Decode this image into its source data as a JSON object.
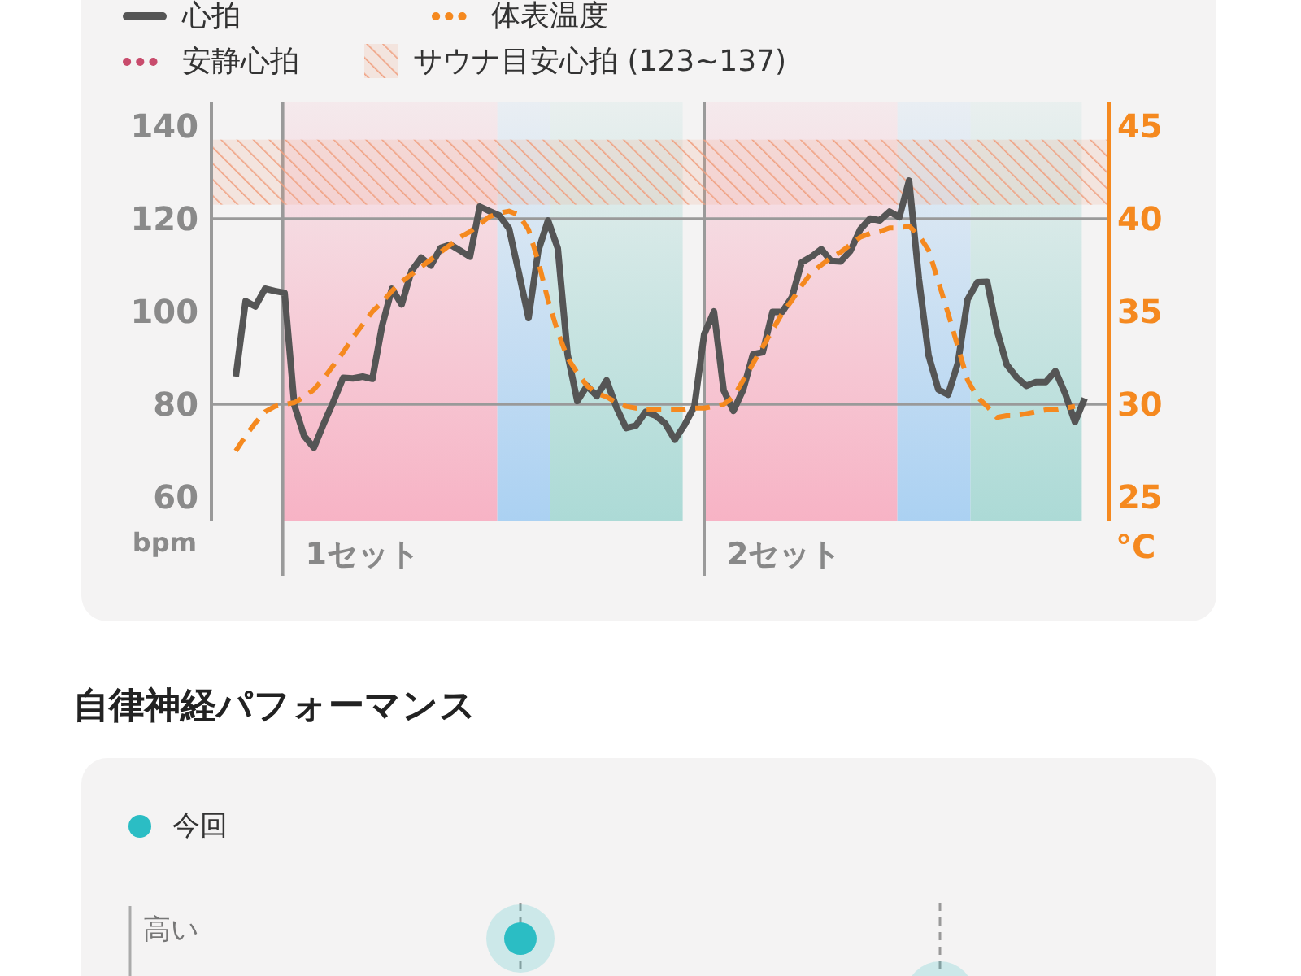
{
  "chart_data": [
    {
      "type": "line",
      "ylim": [
        55,
        145
      ],
      "yticks": [
        60,
        80,
        100,
        120,
        140
      ],
      "ylabel": "bpm",
      "y2lim": [
        23.75,
        46.25
      ],
      "y2ticks": [
        25,
        30,
        35,
        40,
        45
      ],
      "y2label": "°C",
      "legend": "top",
      "categories": [
        null,
        null,
        null,
        null,
        null,
        null,
        null,
        null,
        null,
        null,
        null,
        null,
        null,
        null,
        null,
        null,
        null,
        null,
        null,
        null,
        null,
        null,
        null,
        null,
        null,
        null,
        null,
        null,
        null,
        null,
        null,
        null,
        null,
        null,
        null,
        null,
        null,
        null,
        null,
        null,
        null,
        null,
        null,
        null,
        null,
        null,
        null,
        null,
        null,
        null,
        null,
        null,
        null,
        null,
        null,
        null,
        null,
        null,
        null,
        null,
        null,
        null,
        null,
        null,
        null,
        null,
        null,
        null,
        null,
        null,
        null,
        null,
        null,
        null,
        null,
        null,
        null,
        null,
        null,
        null,
        null,
        null,
        null,
        null,
        null,
        null,
        null,
        null,
        null,
        null,
        null,
        null
      ],
      "series": [
        {
          "name": "心拍",
          "color": "#555555",
          "line_style": "solid",
          "values": [
            null,
            null,
            86.0,
            102.2,
            101.1,
            104.9,
            104.4,
            104,
            79.8,
            73.2,
            70.7,
            75.8,
            80.6,
            85.7,
            85.6,
            86,
            85.5,
            97,
            104.9,
            101.5,
            108.7,
            111.6,
            109.9,
            113.7,
            114.4,
            113.1,
            111.8,
            122.6,
            121.6,
            120.7,
            117.9,
            108.4,
            98.6,
            113.1,
            119.6,
            113.6,
            90.8,
            80.7,
            84,
            81.8,
            85.2,
            79.4,
            74.9,
            75.4,
            78.4,
            77.6,
            75.9,
            72.4,
            75.6,
            79.6,
            95.1,
            100,
            83,
            78.6,
            83.2,
            90.8,
            91.2,
            99.9,
            99.9,
            103.1,
            110.6,
            111.8,
            113.4,
            110.9,
            110.8,
            113.1,
            117.7,
            120,
            119.6,
            121.5,
            120.3,
            128.2,
            107.1,
            90.5,
            83.2,
            82.1,
            88.9,
            102.6,
            106.3,
            106.4,
            96,
            88.6,
            85.9,
            84,
            84.8,
            84.8,
            87.2,
            82.3,
            76.2,
            81.3,
            null,
            null
          ]
        },
        {
          "name": "体表温度",
          "color": "#f5891f",
          "line_style": "dashed",
          "axis": "y2",
          "values": [
            null,
            null,
            27.5,
            28.3,
            29.0,
            29.6,
            29.9,
            30.0,
            30.1,
            30.4,
            30.8,
            31.4,
            32.1,
            32.8,
            33.6,
            34.3,
            35.0,
            35.5,
            36.1,
            36.6,
            37.0,
            37.4,
            37.8,
            38.2,
            38.6,
            39.0,
            39.3,
            39.7,
            40.1,
            40.3,
            40.4,
            40.2,
            39.4,
            37.7,
            35.6,
            33.9,
            32.5,
            31.7,
            31.0,
            30.6,
            30.4,
            30.1,
            29.9,
            29.8,
            29.7,
            29.7,
            29.7,
            29.7,
            29.7,
            29.8,
            29.8,
            29.9,
            30.0,
            30.4,
            31.3,
            32.2,
            33.1,
            34.0,
            34.9,
            35.6,
            36.4,
            37.1,
            37.5,
            37.9,
            38.2,
            38.6,
            39.0,
            39.2,
            39.3,
            39.5,
            39.5,
            39.6,
            39.1,
            38.3,
            36.6,
            34.9,
            33.1,
            31.3,
            30.4,
            29.9,
            29.3,
            29.4,
            29.4,
            29.5,
            29.6,
            29.7,
            29.7,
            29.8,
            29.9,
            null,
            null,
            null
          ]
        },
        {
          "name": "安静心拍",
          "color": "#c84b6c",
          "line_style": "dotted",
          "values": [
            null,
            null,
            null,
            null,
            null,
            null,
            null,
            null,
            null,
            null,
            null,
            null,
            null,
            null,
            null,
            null,
            null,
            null,
            null,
            null,
            null,
            null,
            null,
            null,
            null,
            null,
            null,
            null,
            null,
            null,
            null,
            null,
            null,
            null,
            null,
            null,
            null,
            null,
            null,
            null,
            null,
            null,
            null,
            null,
            null,
            null,
            null,
            null,
            null,
            null,
            null,
            null,
            null,
            null,
            null,
            null,
            null,
            null,
            null,
            null,
            null,
            null,
            null,
            null,
            null,
            null,
            null,
            null,
            null,
            null,
            null,
            null,
            null,
            null,
            null,
            null,
            null,
            null,
            null,
            null,
            null,
            null,
            null,
            null,
            null,
            null,
            null,
            null,
            null,
            null,
            null,
            null
          ]
        }
      ],
      "bands": [
        {
          "axis": "y",
          "from": 123,
          "to": 137,
          "color": "#f0a080",
          "label": "サウナ目安心拍 (123~137)"
        }
      ],
      "ref_lines": [
        {
          "axis": "y",
          "value": 80,
          "color": "#9a9a9a"
        },
        {
          "axis": "y",
          "value": 120,
          "color": "#9a9a9a"
        }
      ],
      "annotations": [
        "1セット",
        "2セット"
      ]
    },
    {
      "type": "other",
      "title": "自律神経パフォーマンス",
      "annotations": [
        "今回",
        "高い"
      ]
    }
  ]
}
